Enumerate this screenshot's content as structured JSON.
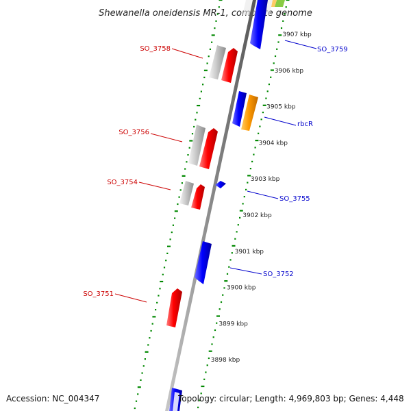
{
  "title": "Shewanella oneidensis MR-1, complete genome",
  "footer": {
    "accession": "Accession: NC_004347",
    "topology": "Topology: circular; Length: 4,969,803 bp; Genes: 4,448"
  },
  "colors": {
    "forward_gene": "#ff0000",
    "reverse_gene": "#0000ff",
    "hypothetical_gene": "#bbbbbb",
    "regulator_gene": "#ff9900",
    "backbone": "#888888",
    "tick_dots": "#008800",
    "forward_label": "#cc0000",
    "reverse_label": "#0000cc"
  },
  "scale_ticks": [
    {
      "kbp": 3907,
      "label": "3907 kbp"
    },
    {
      "kbp": 3906,
      "label": "3906 kbp"
    },
    {
      "kbp": 3905,
      "label": "3905 kbp"
    },
    {
      "kbp": 3904,
      "label": "3904 kbp"
    },
    {
      "kbp": 3903,
      "label": "3903 kbp"
    },
    {
      "kbp": 3902,
      "label": "3902 kbp"
    },
    {
      "kbp": 3901,
      "label": "3901 kbp"
    },
    {
      "kbp": 3900,
      "label": "3900 kbp"
    },
    {
      "kbp": 3899,
      "label": "3899 kbp"
    },
    {
      "kbp": 3898,
      "label": "3898 kbp"
    }
  ],
  "genes": [
    {
      "name": "SO_3751",
      "strand": "forward",
      "kind": "forward",
      "label": "SO_3751"
    },
    {
      "name": "SO_3752",
      "strand": "reverse",
      "kind": "reverse",
      "label": "SO_3752"
    },
    {
      "name": "SO_3754",
      "strand": "forward",
      "kind": "forward",
      "label": "SO_3754"
    },
    {
      "name": "SO_3755",
      "strand": "reverse",
      "kind": "reverse",
      "label": "SO_3755"
    },
    {
      "name": "SO_3756",
      "strand": "forward",
      "kind": "forward",
      "label": "SO_3756"
    },
    {
      "name": "rbcR",
      "strand": "reverse",
      "kind": "regulator",
      "label": "rbcR"
    },
    {
      "name": "SO_3758",
      "strand": "forward",
      "kind": "forward",
      "label": "SO_3758"
    },
    {
      "name": "SO_3759",
      "strand": "reverse",
      "kind": "reverse",
      "label": "SO_3759"
    }
  ]
}
